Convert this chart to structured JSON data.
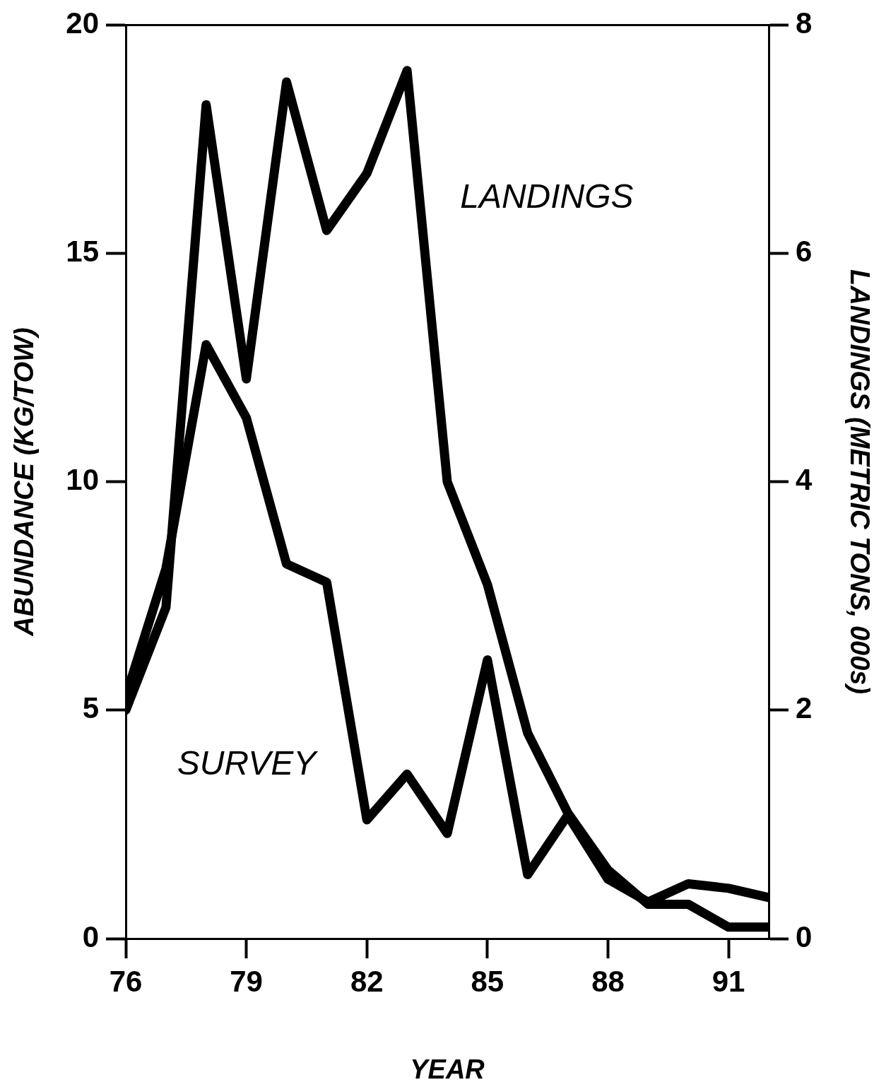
{
  "chart_data": {
    "type": "line",
    "xlabel": "YEAR",
    "ylabel": "ABUNDANCE (KG/TOW)",
    "y2label": "LANDINGS (METRIC TONS, 000s)",
    "x": [
      76,
      77,
      78,
      79,
      80,
      81,
      82,
      83,
      84,
      85,
      86,
      87,
      88,
      89,
      90,
      91,
      92
    ],
    "series": [
      {
        "name": "SURVEY",
        "color": "#000000",
        "values": [
          5.3,
          8.1,
          13.0,
          11.4,
          8.2,
          7.8,
          2.6,
          3.6,
          2.3,
          6.1,
          1.4,
          2.7,
          1.3,
          0.8,
          1.2,
          1.1,
          0.9
        ]
      },
      {
        "name": "LANDINGS",
        "color": "#000000",
        "axis": "y2",
        "values": [
          2.0,
          2.9,
          7.3,
          4.9,
          7.5,
          6.2,
          6.7,
          7.6,
          4.0,
          3.1,
          1.8,
          1.1,
          0.6,
          0.3,
          0.3,
          0.1,
          0.1
        ]
      }
    ],
    "xlim": [
      76,
      92
    ],
    "xticks": [
      76,
      79,
      82,
      85,
      88,
      91
    ],
    "ylim": [
      0,
      20
    ],
    "yticks": [
      0,
      5,
      10,
      15,
      20
    ],
    "y2lim": [
      0,
      8
    ],
    "y2ticks": [
      0,
      2,
      4,
      6,
      8
    ],
    "grid": false,
    "legend": false,
    "marker": "none",
    "line_style": "solid"
  }
}
